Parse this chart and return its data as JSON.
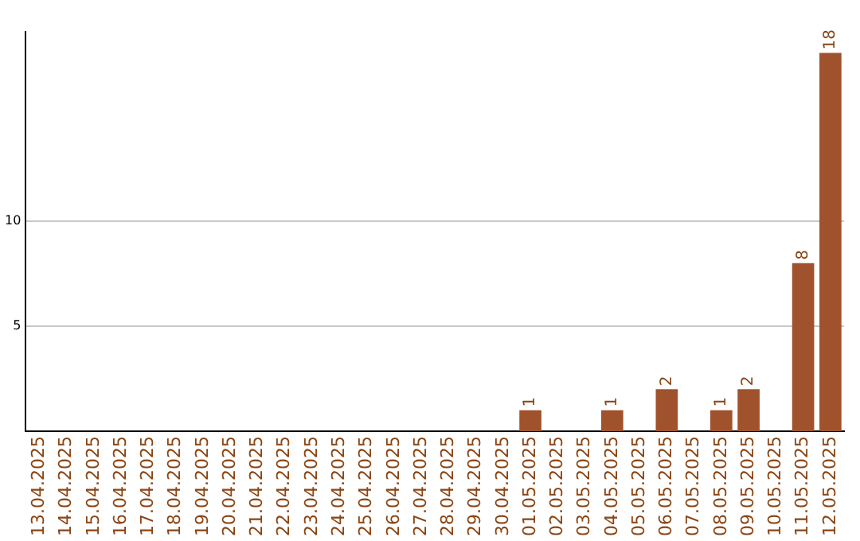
{
  "chart_data": {
    "type": "bar",
    "categories": [
      "13.04.2025",
      "14.04.2025",
      "15.04.2025",
      "16.04.2025",
      "17.04.2025",
      "18.04.2025",
      "19.04.2025",
      "20.04.2025",
      "21.04.2025",
      "22.04.2025",
      "23.04.2025",
      "24.04.2025",
      "25.04.2025",
      "26.04.2025",
      "27.04.2025",
      "28.04.2025",
      "29.04.2025",
      "30.04.2025",
      "01.05.2025",
      "02.05.2025",
      "03.05.2025",
      "04.05.2025",
      "05.05.2025",
      "06.05.2025",
      "07.05.2025",
      "08.05.2025",
      "09.05.2025",
      "10.05.2025",
      "11.05.2025",
      "12.05.2025"
    ],
    "values": [
      0,
      0,
      0,
      0,
      0,
      0,
      0,
      0,
      0,
      0,
      0,
      0,
      0,
      0,
      0,
      0,
      0,
      0,
      1,
      0,
      0,
      1,
      0,
      2,
      0,
      1,
      2,
      0,
      8,
      18
    ],
    "value_labels": [
      null,
      null,
      null,
      null,
      null,
      null,
      null,
      null,
      null,
      null,
      null,
      null,
      null,
      null,
      null,
      null,
      null,
      null,
      "1",
      null,
      null,
      "1",
      null,
      "2",
      null,
      "1",
      "2",
      null,
      "8",
      "18"
    ],
    "color": "#a0522d",
    "ylim": [
      0,
      19
    ],
    "yticks": [
      5,
      10
    ],
    "grid": "y"
  }
}
